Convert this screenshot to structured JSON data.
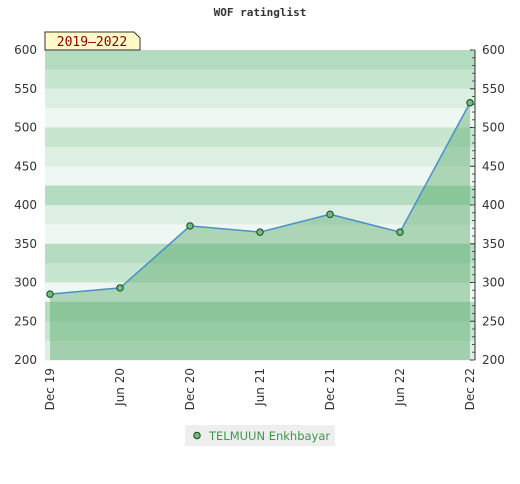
{
  "chart_data": {
    "type": "line",
    "title": "WOF ratinglist",
    "badge": "2019–2022",
    "categories": [
      "Dec 19",
      "Jun 20",
      "Dec 20",
      "Jun 21",
      "Dec 21",
      "Jun 22",
      "Dec 22"
    ],
    "series": [
      {
        "name": "TELMUUN Enkhbayar",
        "color": "#4a90c8",
        "values": [
          285,
          293,
          373,
          365,
          388,
          365,
          532
        ]
      }
    ],
    "ylim": [
      200,
      600
    ],
    "yticks": [
      200,
      250,
      300,
      350,
      400,
      450,
      500,
      550,
      600
    ],
    "grid": true
  }
}
